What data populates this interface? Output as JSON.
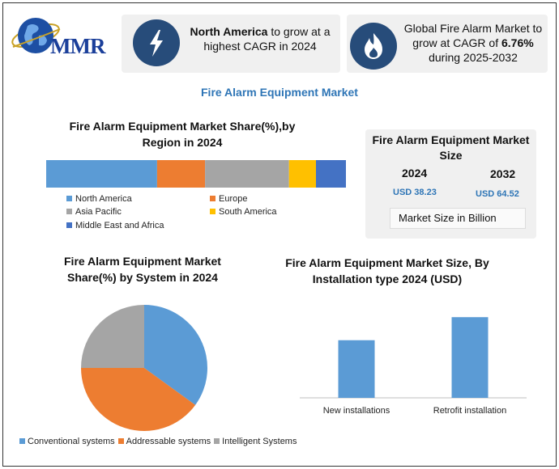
{
  "brand": {
    "logo_text": "MMR"
  },
  "cards": [
    {
      "bold": "North America",
      "rest": " to grow at a highest CAGR in 2024",
      "icon": "lightning-bolt-icon"
    },
    {
      "pre": "Global Fire Alarm Market to grow at CAGR of ",
      "bold": "6.76%",
      "post": " during 2025-2032",
      "icon": "flame-icon"
    }
  ],
  "main_title": "Fire Alarm Equipment Market",
  "size_card": {
    "title": "Fire Alarm Equipment Market Size",
    "year1": "2024",
    "value1": "USD 38.23",
    "year2": "2032",
    "value2": "USD 64.52",
    "unit": "Market Size in Billion"
  },
  "colors": {
    "blue": "#5b9bd5",
    "orange": "#ed7d31",
    "gray": "#a5a5a5",
    "yellow": "#ffc000",
    "darkblue": "#4472c4",
    "icon_bg": "#274c7a",
    "title_blue": "#2e75b6"
  },
  "chart_data": [
    {
      "type": "bar",
      "stacked": true,
      "orientation": "horizontal",
      "title": "Fire Alarm Equipment Market Share(%),by Region in 2024",
      "series": [
        {
          "name": "North America",
          "value": 37,
          "color": "#5b9bd5"
        },
        {
          "name": "Europe",
          "value": 16,
          "color": "#ed7d31"
        },
        {
          "name": "Asia Pacific",
          "value": 28,
          "color": "#a5a5a5"
        },
        {
          "name": "South America",
          "value": 9,
          "color": "#ffc000"
        },
        {
          "name": "Middle East and Africa",
          "value": 10,
          "color": "#4472c4"
        }
      ],
      "legend_position": "bottom"
    },
    {
      "type": "pie",
      "title": "Fire Alarm Equipment  Market Share(%) by System in 2024",
      "labels": [
        "Conventional systems",
        "Addressable systems",
        "Intelligent Systems"
      ],
      "values": [
        35,
        40,
        25
      ],
      "colors": [
        "#5b9bd5",
        "#ed7d31",
        "#a5a5a5"
      ],
      "legend_position": "bottom"
    },
    {
      "type": "bar",
      "title": "Fire Alarm Equipment Market Size, By Installation type  2024  (USD)",
      "categories": [
        "New installations",
        "Retrofit installation"
      ],
      "values": [
        70,
        98
      ],
      "ylim": [
        0,
        110
      ],
      "color": "#5b9bd5",
      "grid": false
    }
  ]
}
